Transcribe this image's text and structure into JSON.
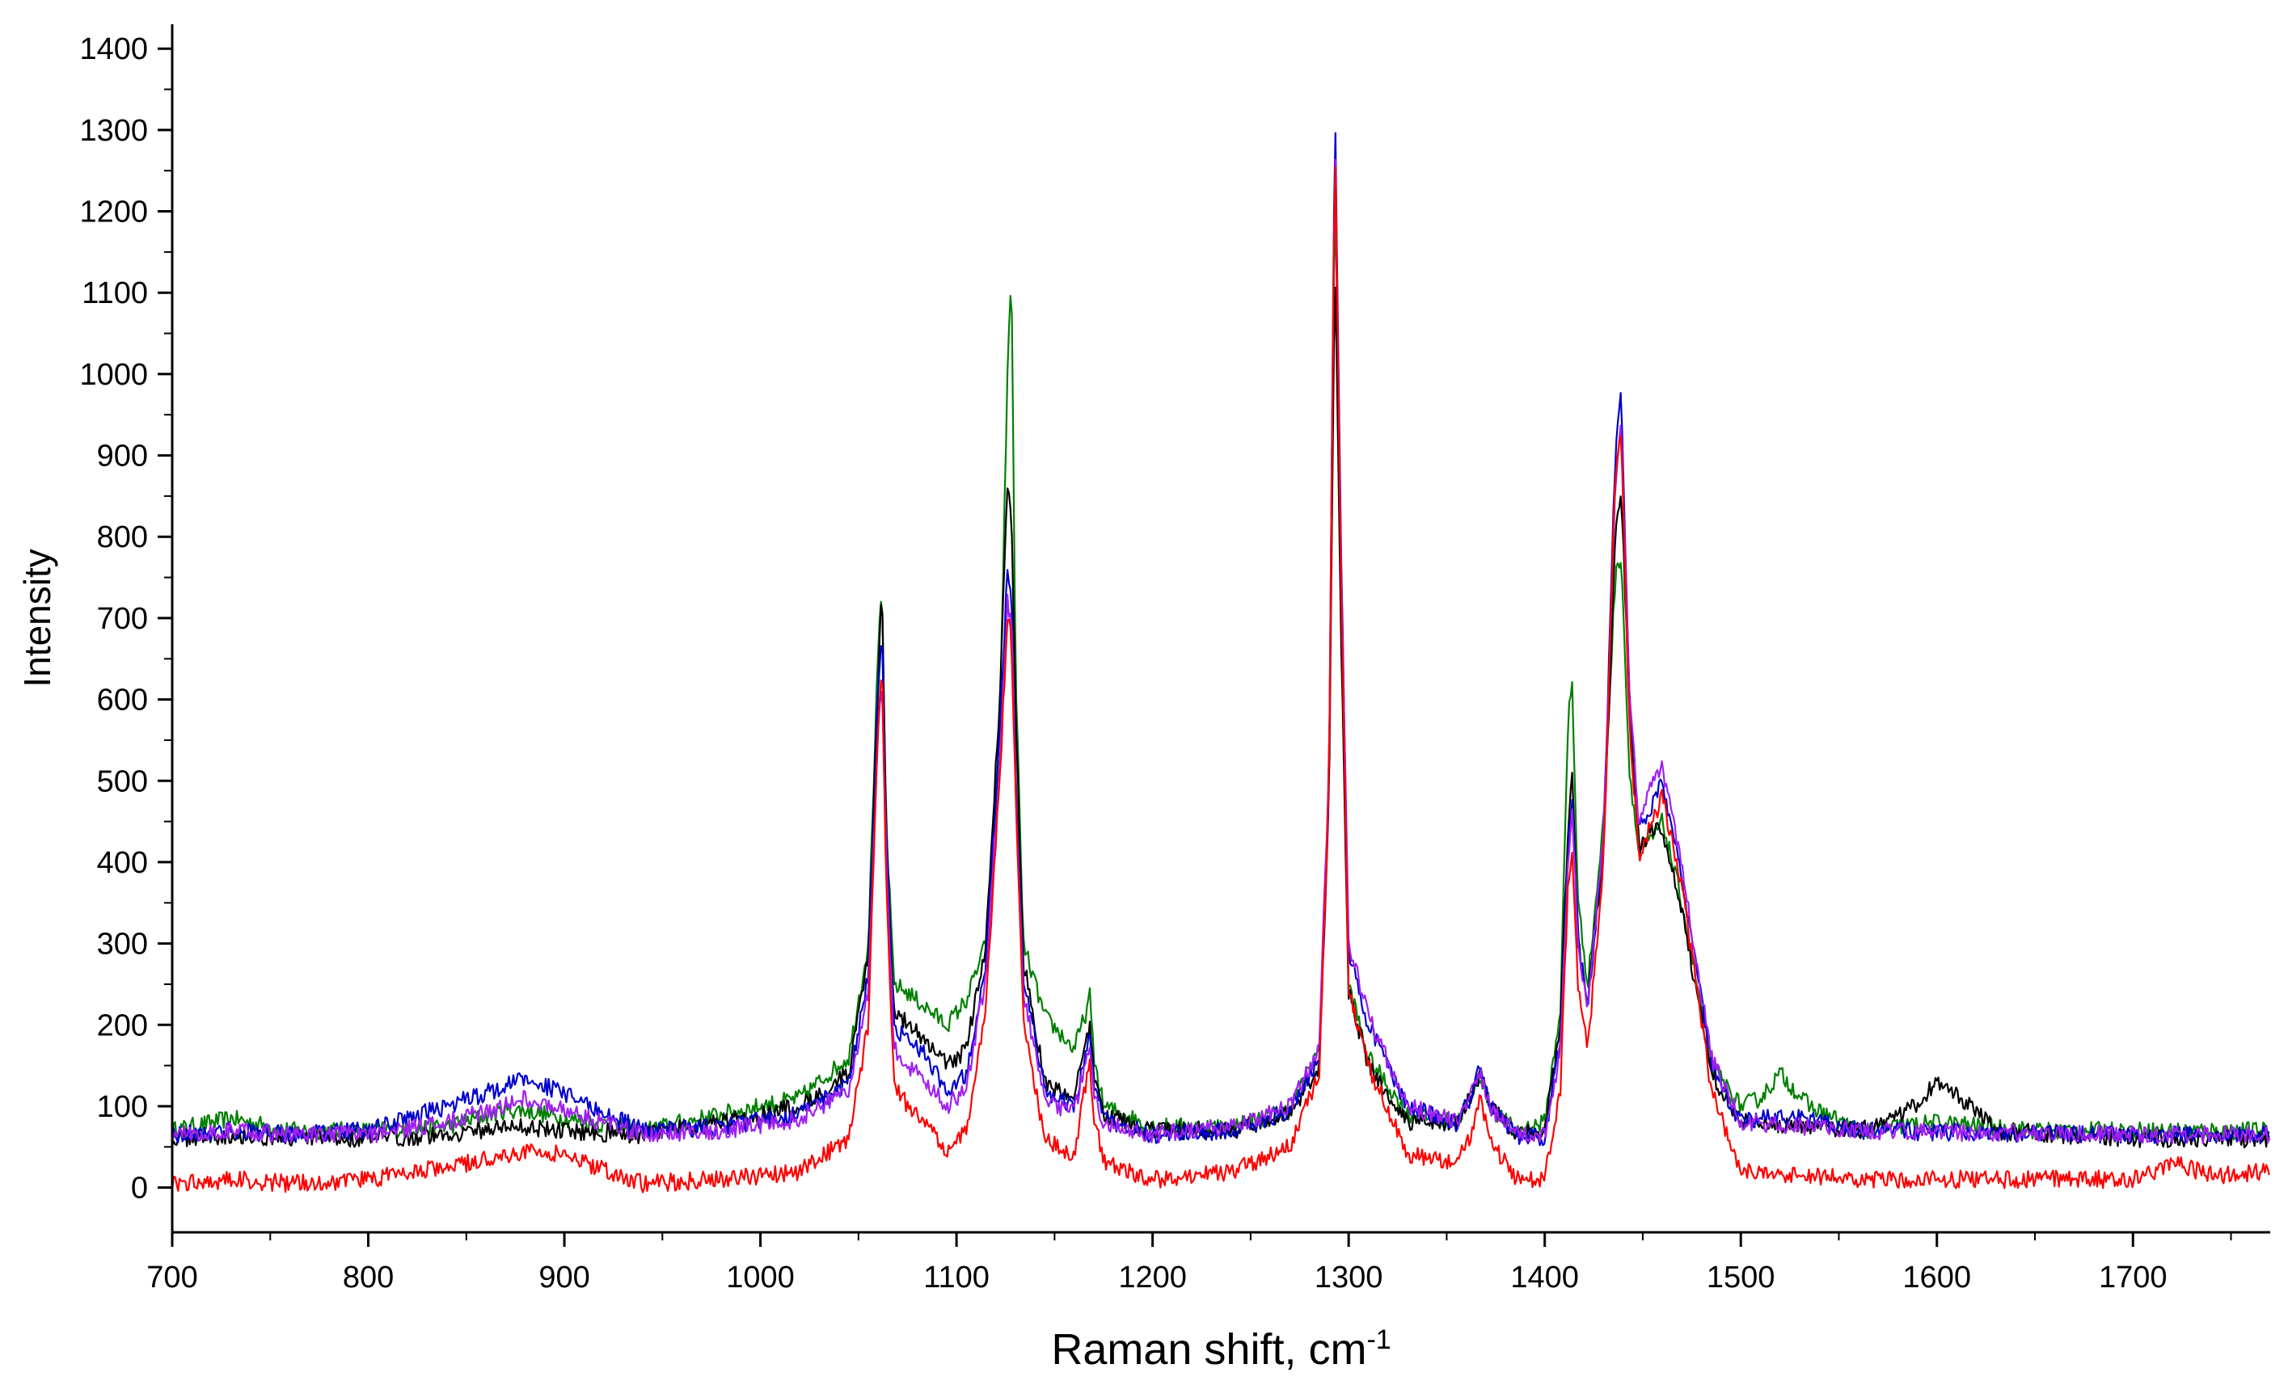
{
  "chart_data": {
    "type": "line",
    "title": "",
    "xlabel": "Raman shift, cm",
    "xlabel_superscript": "-1",
    "ylabel": "Intensity",
    "xlim": [
      700,
      1770
    ],
    "ylim": [
      -55,
      1430
    ],
    "xticks": [
      700,
      800,
      900,
      1000,
      1100,
      1200,
      1300,
      1400,
      1500,
      1600,
      1700
    ],
    "yticks": [
      0,
      100,
      200,
      300,
      400,
      500,
      600,
      700,
      800,
      900,
      1000,
      1100,
      1200,
      1300,
      1400
    ],
    "grid": false,
    "legend": "none",
    "series": [
      {
        "color": "#008000",
        "x": [
          700,
          730,
          760,
          800,
          840,
          870,
          880,
          900,
          940,
          980,
          1020,
          1045,
          1055,
          1060,
          1062,
          1064,
          1068,
          1075,
          1085,
          1095,
          1105,
          1115,
          1122,
          1126,
          1128,
          1130,
          1134,
          1145,
          1160,
          1166,
          1168,
          1170,
          1175,
          1200,
          1240,
          1270,
          1285,
          1290,
          1293,
          1296,
          1300,
          1310,
          1330,
          1355,
          1362,
          1367,
          1372,
          1385,
          1400,
          1408,
          1412,
          1414,
          1417,
          1422,
          1430,
          1436,
          1439,
          1443,
          1448,
          1455,
          1460,
          1470,
          1485,
          1500,
          1510,
          1520,
          1535,
          1560,
          1600,
          1650,
          1700,
          1770
        ],
        "y": [
          70,
          85,
          70,
          70,
          75,
          95,
          95,
          85,
          70,
          90,
          110,
          160,
          300,
          660,
          730,
          460,
          250,
          240,
          220,
          200,
          230,
          300,
          560,
          1000,
          1140,
          650,
          300,
          210,
          170,
          215,
          235,
          160,
          100,
          75,
          75,
          95,
          170,
          500,
          1250,
          750,
          250,
          160,
          90,
          80,
          110,
          140,
          100,
          70,
          80,
          220,
          580,
          620,
          350,
          250,
          450,
          750,
          780,
          520,
          410,
          430,
          450,
          350,
          150,
          100,
          110,
          140,
          100,
          70,
          80,
          70,
          70,
          70
        ]
      },
      {
        "color": "#000000",
        "x": [
          700,
          730,
          760,
          800,
          840,
          870,
          880,
          900,
          940,
          980,
          1020,
          1045,
          1055,
          1060,
          1062,
          1064,
          1068,
          1075,
          1085,
          1095,
          1105,
          1115,
          1122,
          1126,
          1128,
          1130,
          1134,
          1145,
          1160,
          1166,
          1168,
          1170,
          1175,
          1200,
          1240,
          1270,
          1285,
          1290,
          1293,
          1296,
          1300,
          1310,
          1330,
          1355,
          1362,
          1367,
          1372,
          1385,
          1400,
          1408,
          1412,
          1414,
          1417,
          1422,
          1430,
          1436,
          1439,
          1443,
          1448,
          1455,
          1460,
          1470,
          1485,
          1500,
          1560,
          1590,
          1600,
          1610,
          1630,
          1700,
          1770
        ],
        "y": [
          60,
          65,
          60,
          60,
          65,
          75,
          75,
          70,
          65,
          80,
          100,
          140,
          280,
          620,
          740,
          450,
          220,
          200,
          180,
          150,
          170,
          300,
          600,
          870,
          830,
          600,
          280,
          130,
          110,
          175,
          200,
          140,
          90,
          70,
          70,
          90,
          150,
          480,
          1150,
          700,
          240,
          150,
          80,
          80,
          110,
          140,
          100,
          65,
          70,
          200,
          450,
          500,
          300,
          230,
          420,
          800,
          860,
          600,
          420,
          440,
          440,
          340,
          140,
          80,
          70,
          100,
          130,
          115,
          70,
          60,
          60
        ]
      },
      {
        "color": "#0000cc",
        "x": [
          700,
          730,
          760,
          800,
          840,
          870,
          880,
          900,
          940,
          980,
          1020,
          1045,
          1055,
          1060,
          1062,
          1064,
          1068,
          1075,
          1085,
          1095,
          1105,
          1115,
          1122,
          1126,
          1128,
          1130,
          1134,
          1145,
          1160,
          1166,
          1168,
          1170,
          1175,
          1200,
          1240,
          1270,
          1285,
          1290,
          1293,
          1296,
          1300,
          1310,
          1330,
          1355,
          1362,
          1367,
          1372,
          1385,
          1400,
          1408,
          1412,
          1414,
          1417,
          1422,
          1430,
          1436,
          1439,
          1443,
          1448,
          1455,
          1460,
          1470,
          1485,
          1500,
          1520,
          1560,
          1700,
          1770
        ],
        "y": [
          65,
          70,
          65,
          70,
          100,
          125,
          135,
          115,
          70,
          75,
          90,
          130,
          260,
          600,
          680,
          440,
          200,
          180,
          160,
          120,
          140,
          280,
          560,
          760,
          730,
          520,
          260,
          120,
          100,
          170,
          190,
          130,
          85,
          65,
          70,
          95,
          160,
          500,
          1330,
          800,
          290,
          200,
          100,
          80,
          110,
          150,
          100,
          65,
          60,
          180,
          420,
          480,
          310,
          220,
          430,
          900,
          985,
          620,
          440,
          470,
          500,
          380,
          150,
          80,
          90,
          70,
          65,
          65
        ]
      },
      {
        "color": "#a020f0",
        "x": [
          700,
          730,
          760,
          800,
          840,
          870,
          880,
          900,
          940,
          980,
          1020,
          1045,
          1055,
          1060,
          1062,
          1064,
          1068,
          1075,
          1085,
          1095,
          1105,
          1115,
          1122,
          1126,
          1128,
          1130,
          1134,
          1145,
          1160,
          1166,
          1168,
          1170,
          1175,
          1200,
          1240,
          1270,
          1285,
          1290,
          1293,
          1296,
          1300,
          1310,
          1330,
          1355,
          1362,
          1367,
          1372,
          1385,
          1400,
          1408,
          1412,
          1414,
          1417,
          1422,
          1430,
          1436,
          1439,
          1443,
          1448,
          1455,
          1460,
          1470,
          1485,
          1500,
          1560,
          1700,
          1770
        ],
        "y": [
          65,
          70,
          65,
          65,
          80,
          100,
          110,
          95,
          65,
          70,
          85,
          120,
          240,
          560,
          620,
          420,
          170,
          150,
          130,
          100,
          120,
          260,
          520,
          720,
          700,
          500,
          240,
          110,
          90,
          160,
          180,
          120,
          80,
          65,
          75,
          100,
          170,
          520,
          1300,
          800,
          300,
          210,
          100,
          80,
          110,
          145,
          100,
          65,
          65,
          170,
          400,
          460,
          300,
          220,
          430,
          860,
          940,
          610,
          450,
          500,
          520,
          390,
          160,
          80,
          70,
          65,
          65
        ]
      },
      {
        "color": "#ff0000",
        "x": [
          700,
          730,
          760,
          800,
          840,
          870,
          880,
          900,
          940,
          980,
          1020,
          1045,
          1055,
          1060,
          1062,
          1064,
          1068,
          1075,
          1085,
          1095,
          1105,
          1115,
          1122,
          1126,
          1128,
          1130,
          1134,
          1145,
          1160,
          1166,
          1168,
          1170,
          1175,
          1200,
          1240,
          1270,
          1285,
          1290,
          1293,
          1296,
          1300,
          1310,
          1330,
          1355,
          1362,
          1367,
          1372,
          1385,
          1400,
          1408,
          1412,
          1414,
          1417,
          1422,
          1430,
          1436,
          1439,
          1443,
          1448,
          1455,
          1460,
          1470,
          1485,
          1500,
          1560,
          1700,
          1720,
          1740,
          1770
        ],
        "y": [
          5,
          10,
          5,
          10,
          25,
          40,
          45,
          40,
          5,
          10,
          20,
          60,
          200,
          560,
          640,
          380,
          130,
          100,
          75,
          45,
          70,
          220,
          500,
          700,
          680,
          490,
          210,
          60,
          40,
          130,
          150,
          90,
          30,
          10,
          20,
          50,
          140,
          500,
          1300,
          760,
          240,
          150,
          40,
          30,
          60,
          110,
          60,
          10,
          10,
          120,
          380,
          420,
          250,
          170,
          400,
          880,
          920,
          580,
          410,
          450,
          480,
          370,
          120,
          20,
          10,
          10,
          30,
          15,
          20
        ]
      }
    ]
  }
}
